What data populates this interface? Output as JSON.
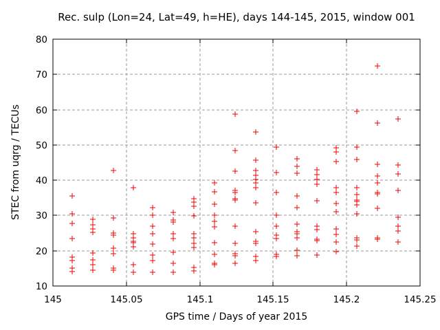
{
  "chart_data": {
    "type": "scatter",
    "title": "Rec. sulp (Lon=24, Lat=49, h=HE), days 144-145, 2015, window 001",
    "xlabel": "GPS time / Days of year 2015",
    "ylabel": "STEC from uqrg / TECUs",
    "xlim": [
      145.0,
      145.25
    ],
    "ylim": [
      10,
      80
    ],
    "x_ticks": [
      145.0,
      145.05,
      145.1,
      145.15,
      145.2,
      145.25
    ],
    "x_tick_labels": [
      "145",
      "145.05",
      "145.1",
      "145.15",
      "145.2",
      "145.25"
    ],
    "y_ticks": [
      10,
      20,
      30,
      40,
      50,
      60,
      70,
      80
    ],
    "y_tick_labels": [
      "10",
      "20",
      "30",
      "40",
      "50",
      "60",
      "70",
      "80"
    ],
    "grid": true,
    "legend": "none",
    "marker": "plus",
    "series": [
      {
        "name": "STEC",
        "columns": [
          {
            "x": 145.013,
            "ys": [
              35.6,
              30.4,
              27.8,
              23.4,
              18.1,
              17.2,
              15.1,
              14.1
            ]
          },
          {
            "x": 145.027,
            "ys": [
              28.9,
              27.4,
              26.2,
              25.2,
              19.3,
              17.4,
              16.0,
              14.4
            ]
          },
          {
            "x": 145.041,
            "ys": [
              42.8,
              29.3,
              25.0,
              24.5,
              20.8,
              19.2,
              15.0,
              14.4
            ]
          },
          {
            "x": 145.055,
            "ys": [
              37.9,
              24.9,
              23.6,
              22.7,
              22.2,
              21.2,
              16.1,
              13.9
            ]
          },
          {
            "x": 145.068,
            "ys": [
              32.2,
              30.0,
              26.9,
              24.9,
              21.9,
              18.8,
              17.3,
              13.9
            ]
          },
          {
            "x": 145.082,
            "ys": [
              30.8,
              28.7,
              28.2,
              24.9,
              23.4,
              19.6,
              16.5,
              13.9
            ]
          },
          {
            "x": 145.096,
            "ys": [
              34.8,
              33.7,
              32.6,
              29.9,
              24.8,
              23.7,
              22.0,
              20.9,
              15.3,
              14.2
            ]
          },
          {
            "x": 145.11,
            "ys": [
              39.2,
              36.8,
              33.3,
              30.0,
              28.4,
              26.8,
              22.3,
              19.0,
              16.4,
              16.0
            ]
          },
          {
            "x": 145.124,
            "ys": [
              58.7,
              48.5,
              42.6,
              37.2,
              36.5,
              34.8,
              34.3,
              27.0,
              22.0,
              19.2,
              18.6,
              16.4
            ]
          },
          {
            "x": 145.138,
            "ys": [
              53.6,
              45.7,
              42.7,
              41.3,
              40.2,
              39.3,
              37.8,
              33.6,
              25.5,
              22.6,
              22.1,
              18.4,
              17.2
            ]
          },
          {
            "x": 145.152,
            "ys": [
              49.4,
              42.2,
              36.6,
              30.1,
              26.9,
              24.5,
              23.4,
              18.9,
              18.3
            ]
          },
          {
            "x": 145.166,
            "ys": [
              46.1,
              43.9,
              41.9,
              35.6,
              32.2,
              27.6,
              25.4,
              24.9,
              23.6,
              20.2,
              18.5
            ]
          },
          {
            "x": 145.18,
            "ys": [
              43.0,
              41.5,
              40.2,
              38.9,
              34.1,
              27.0,
              25.9,
              23.3,
              22.9,
              18.7
            ]
          },
          {
            "x": 145.193,
            "ys": [
              49.2,
              48.0,
              45.3,
              37.8,
              36.5,
              33.4,
              31.0,
              26.1,
              24.6,
              22.4,
              19.8
            ]
          },
          {
            "x": 145.207,
            "ys": [
              59.5,
              49.4,
              45.8,
              37.8,
              35.9,
              34.4,
              33.9,
              33.1,
              30.4,
              23.7,
              23.1,
              21.4
            ]
          },
          {
            "x": 145.221,
            "ys": [
              72.4,
              56.2,
              44.6,
              41.2,
              39.3,
              36.6,
              36.2,
              32.1,
              23.7,
              23.2
            ]
          },
          {
            "x": 145.235,
            "ys": [
              57.3,
              44.4,
              41.7,
              37.1,
              29.5,
              26.9,
              25.6,
              22.5
            ]
          }
        ]
      }
    ],
    "colors": {
      "marker": "#ee0000",
      "grid": "#999999",
      "frame": "#000000",
      "text": "#000000",
      "background": "#ffffff"
    }
  }
}
